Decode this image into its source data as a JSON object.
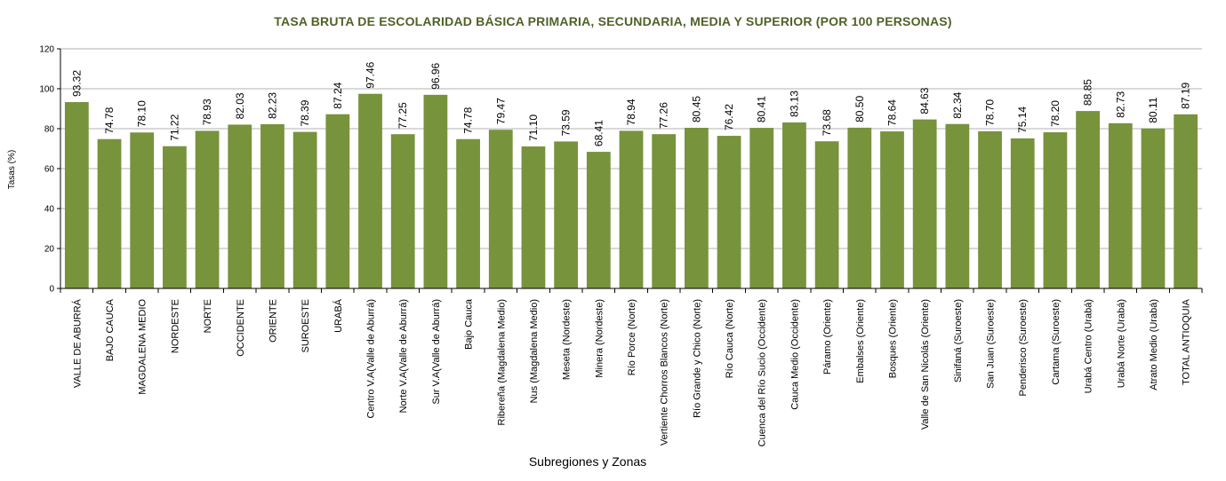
{
  "chart_data": {
    "type": "bar",
    "title": "TASA BRUTA DE ESCOLARIDAD BÁSICA PRIMARIA, SECUNDARIA, MEDIA Y SUPERIOR (POR 100 PERSONAS)",
    "xlabel": "Subregiones y Zonas",
    "ylabel": "Tasas (%)",
    "ylim": [
      0,
      120
    ],
    "yticks": [
      0,
      20,
      40,
      60,
      80,
      100,
      120
    ],
    "grid": true,
    "legend": "none",
    "bar_color": "#77933c",
    "categories": [
      "VALLE DE ABURRÁ",
      "BAJO CAUCA",
      "MAGDALENA MEDIO",
      "NORDESTE",
      "NORTE",
      "OCCIDENTE",
      "ORIENTE",
      "SUROESTE",
      "URABÁ",
      "Centro V.A(Valle de Aburrá)",
      "Norte V.A(Valle de Aburrá)",
      "Sur V.A(Valle de Aburrá)",
      "Bajo Cauca",
      "Ribereña (Magdalena Medio)",
      "Nus (Magdalena Medio)",
      "Meseta (Nordeste)",
      "Minera (Nordeste)",
      "Río Porce (Norte)",
      "Vertiente Chorros Blancos (Norte)",
      "Río Grande y Chico (Norte)",
      "Río Cauca (Norte)",
      "Cuenca del Río Sucio (Occidente)",
      "Cauca Medio (Occidente)",
      "Páramo (Oriente)",
      "Embalses (Oriente)",
      "Bosques (Oriente)",
      "Valle de San Nicolás (Oriente)",
      "Sinifaná (Suroeste)",
      "San Juan (Suroeste)",
      "Penderisco (Suroeste)",
      "Cartama (Suroeste)",
      "Urabá Centro (Urabá)",
      "Urabá Norte (Urabá)",
      "Atrato Medio (Urabá)",
      "TOTAL ANTIOQUIA"
    ],
    "values": [
      93.32,
      74.78,
      78.1,
      71.22,
      78.93,
      82.03,
      82.23,
      78.39,
      87.24,
      97.46,
      77.25,
      96.96,
      74.78,
      79.47,
      71.1,
      73.59,
      68.41,
      78.94,
      77.26,
      80.45,
      76.42,
      80.41,
      83.13,
      73.68,
      80.5,
      78.64,
      84.63,
      82.34,
      78.7,
      75.14,
      78.2,
      88.85,
      82.73,
      80.11,
      87.19
    ],
    "data_labels": [
      "93.32",
      "74.78",
      "78.10",
      "71.22",
      "78.93",
      "82.03",
      "82.23",
      "78.39",
      "87.24",
      "97.46",
      "77.25",
      "96.96",
      "74.78",
      "79.47",
      "71.10",
      "73.59",
      "68.41",
      "78.94",
      "77.26",
      "80.45",
      "76.42",
      "80.41",
      "83.13",
      "73.68",
      "80.50",
      "78.64",
      "84.63",
      "82.34",
      "78.70",
      "75.14",
      "78.20",
      "88.85",
      "82.73",
      "80.11",
      "87.19"
    ]
  }
}
